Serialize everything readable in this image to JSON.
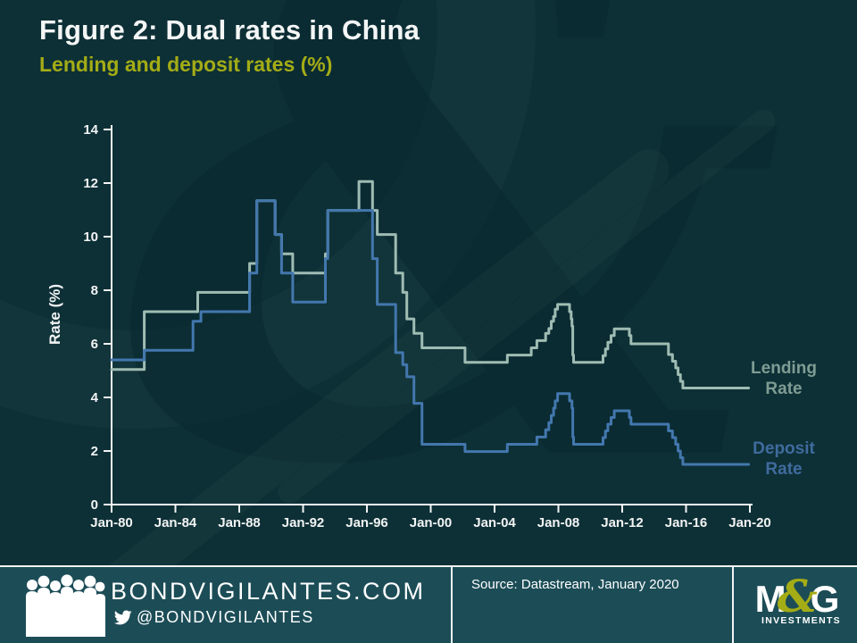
{
  "header": {
    "title": "Figure 2: Dual rates in China",
    "subtitle": "Lending and deposit rates (%)"
  },
  "colors": {
    "background": "#0d3036",
    "footer_band": "#1c4d57",
    "axis": "#f2f4f4",
    "title": "#f4f6f6",
    "subtitle_olive": "#a4ac16",
    "lending_line": "#9fbcb3",
    "deposit_line": "#4377ae",
    "lending_label": "#7f9c94",
    "deposit_label": "#3f6b9e",
    "mg_accent": "#a4ac16"
  },
  "chart_data": {
    "type": "line",
    "step": true,
    "title": "Lending and deposit rates (%)",
    "xlabel": "",
    "ylabel": "Rate (%)",
    "ylim": [
      0,
      14
    ],
    "xlim": [
      1980,
      2020
    ],
    "grid": false,
    "legend_position": "right-annotations",
    "y_ticks": [
      0,
      2,
      4,
      6,
      8,
      10,
      12,
      14
    ],
    "x_ticks": [
      1980,
      1984,
      1988,
      1992,
      1996,
      2000,
      2004,
      2008,
      2012,
      2016,
      2020
    ],
    "x_tick_labels": [
      "Jan-80",
      "Jan-84",
      "Jan-88",
      "Jan-92",
      "Jan-96",
      "Jan-00",
      "Jan-04",
      "Jan-08",
      "Jan-12",
      "Jan-16",
      "Jan-20"
    ],
    "series": [
      {
        "name": "Lending Rate",
        "label_line1": "Lending",
        "label_line2": "Rate",
        "color": "#9fbcb3",
        "points": [
          [
            1980.0,
            5.04
          ],
          [
            1982.05,
            7.2
          ],
          [
            1985.4,
            7.92
          ],
          [
            1988.65,
            9.0
          ],
          [
            1989.1,
            11.34
          ],
          [
            1990.25,
            10.08
          ],
          [
            1990.65,
            9.36
          ],
          [
            1991.35,
            8.64
          ],
          [
            1993.4,
            9.36
          ],
          [
            1993.55,
            10.98
          ],
          [
            1995.5,
            12.06
          ],
          [
            1996.35,
            10.98
          ],
          [
            1996.65,
            10.08
          ],
          [
            1997.8,
            8.64
          ],
          [
            1998.25,
            7.92
          ],
          [
            1998.5,
            6.93
          ],
          [
            1998.95,
            6.39
          ],
          [
            1999.45,
            5.85
          ],
          [
            2002.15,
            5.31
          ],
          [
            2004.8,
            5.58
          ],
          [
            2006.3,
            5.85
          ],
          [
            2006.65,
            6.12
          ],
          [
            2007.2,
            6.39
          ],
          [
            2007.4,
            6.57
          ],
          [
            2007.55,
            6.84
          ],
          [
            2007.7,
            7.02
          ],
          [
            2007.8,
            7.29
          ],
          [
            2007.95,
            7.47
          ],
          [
            2008.7,
            7.2
          ],
          [
            2008.8,
            6.93
          ],
          [
            2008.85,
            6.66
          ],
          [
            2008.9,
            5.58
          ],
          [
            2008.95,
            5.31
          ],
          [
            2010.8,
            5.56
          ],
          [
            2010.95,
            5.81
          ],
          [
            2011.1,
            6.06
          ],
          [
            2011.3,
            6.31
          ],
          [
            2011.5,
            6.56
          ],
          [
            2012.45,
            6.31
          ],
          [
            2012.55,
            6.0
          ],
          [
            2014.9,
            5.6
          ],
          [
            2015.15,
            5.35
          ],
          [
            2015.35,
            5.1
          ],
          [
            2015.5,
            4.85
          ],
          [
            2015.65,
            4.6
          ],
          [
            2015.8,
            4.35
          ],
          [
            2019.92,
            4.35
          ]
        ]
      },
      {
        "name": "Deposit Rate",
        "label_line1": "Deposit",
        "label_line2": "Rate",
        "color": "#4377ae",
        "points": [
          [
            1980.0,
            5.4
          ],
          [
            1982.05,
            5.76
          ],
          [
            1985.1,
            6.84
          ],
          [
            1985.6,
            7.2
          ],
          [
            1988.65,
            8.64
          ],
          [
            1989.1,
            11.34
          ],
          [
            1990.25,
            10.08
          ],
          [
            1990.65,
            8.64
          ],
          [
            1991.35,
            7.56
          ],
          [
            1993.4,
            9.18
          ],
          [
            1993.55,
            10.98
          ],
          [
            1996.35,
            9.18
          ],
          [
            1996.65,
            7.47
          ],
          [
            1997.8,
            5.67
          ],
          [
            1998.25,
            5.22
          ],
          [
            1998.5,
            4.77
          ],
          [
            1998.95,
            3.78
          ],
          [
            1999.45,
            2.25
          ],
          [
            2002.15,
            1.98
          ],
          [
            2004.8,
            2.25
          ],
          [
            2006.65,
            2.52
          ],
          [
            2007.2,
            2.79
          ],
          [
            2007.4,
            3.06
          ],
          [
            2007.55,
            3.33
          ],
          [
            2007.7,
            3.6
          ],
          [
            2007.8,
            3.87
          ],
          [
            2007.95,
            4.14
          ],
          [
            2008.7,
            3.87
          ],
          [
            2008.85,
            3.6
          ],
          [
            2008.9,
            2.52
          ],
          [
            2008.95,
            2.25
          ],
          [
            2010.8,
            2.5
          ],
          [
            2010.95,
            2.75
          ],
          [
            2011.1,
            3.0
          ],
          [
            2011.3,
            3.25
          ],
          [
            2011.5,
            3.5
          ],
          [
            2012.45,
            3.25
          ],
          [
            2012.55,
            3.0
          ],
          [
            2014.9,
            2.75
          ],
          [
            2015.15,
            2.5
          ],
          [
            2015.35,
            2.25
          ],
          [
            2015.5,
            2.0
          ],
          [
            2015.65,
            1.75
          ],
          [
            2015.8,
            1.5
          ],
          [
            2019.92,
            1.5
          ]
        ]
      }
    ]
  },
  "footer": {
    "site": "BONDVIGILANTES.COM",
    "twitter_handle": "@BONDVIGILANTES",
    "source": "Source: Datastream, January 2020",
    "logo": {
      "m": "M",
      "amp": "&",
      "g": "G",
      "sub": "INVESTMENTS"
    }
  },
  "icons": {
    "people": "people-silhouette-icon",
    "twitter": "twitter-bird-icon"
  },
  "watermark_glyph": "&"
}
